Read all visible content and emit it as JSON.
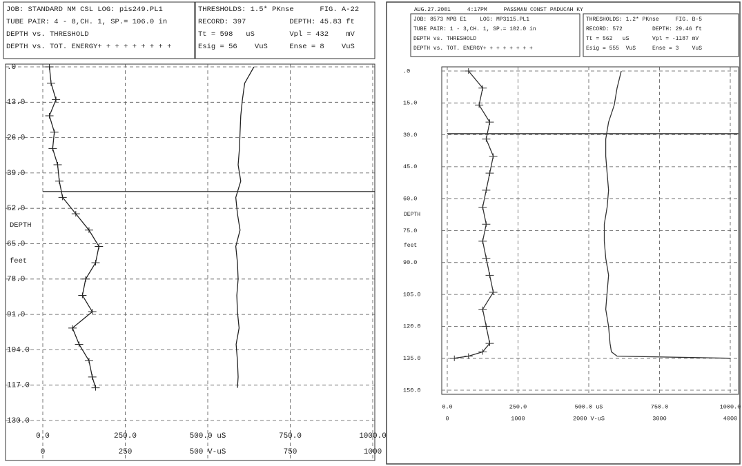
{
  "chart_data": [
    {
      "type": "line",
      "header_left": [
        "JOB: STANDARD NM CSL LOG: pis249.PL1",
        "TUBE PAIR: 4 - 8,CH. 1, SP.= 106.0 in",
        "DEPTH vs. THRESHOLD",
        "DEPTH vs. TOT. ENERGY+ + + + + + + + +"
      ],
      "header_right": [
        "THRESHOLDS: 1.5* PKnse      FIG. A-22",
        "RECORD: 397          DEPTH: 45.83 ft",
        "Tt = 598   uS        Vpl = 432    mV",
        "Esig = 56    VuS     Ense = 8    VuS"
      ],
      "ylabel": [
        "DEPTH",
        "feet"
      ],
      "x": [
        0,
        6,
        12,
        18,
        24,
        30,
        36,
        42,
        48,
        54,
        60,
        66,
        72,
        78,
        84,
        90,
        96,
        102,
        108,
        114,
        118
      ],
      "ylim": [
        0,
        130
      ],
      "yticks": [
        {
          "value": 0,
          "label": ".0"
        },
        {
          "value": 13,
          "label": "13.0"
        },
        {
          "value": 26,
          "label": "26.0"
        },
        {
          "value": 39,
          "label": "39.0"
        },
        {
          "value": 52,
          "label": "52.0"
        },
        {
          "value": 65,
          "label": "65.0"
        },
        {
          "value": 78,
          "label": "78.0"
        },
        {
          "value": 91,
          "label": "91.0"
        },
        {
          "value": 104,
          "label": "104.0"
        },
        {
          "value": 117,
          "label": "117.0"
        },
        {
          "value": 130,
          "label": "130.0"
        }
      ],
      "xlim": [
        0,
        1000
      ],
      "xticks": [
        {
          "value": 0,
          "label": "0.0"
        },
        {
          "value": 250,
          "label": "250.0"
        },
        {
          "value": 500,
          "label": "500.0 uS"
        },
        {
          "value": 750,
          "label": "750.0"
        },
        {
          "value": 1000,
          "label": "1000.0"
        }
      ],
      "x2lim": [
        0,
        1000
      ],
      "x2ticks": [
        0,
        250,
        {
          "value": 500,
          "label": "500 V-uS"
        },
        750,
        1000
      ],
      "marker_depth": 45.83,
      "series": [
        {
          "color": "#222222",
          "values": [
            640,
            612,
            605,
            600,
            598,
            596,
            592,
            600,
            585,
            590,
            598,
            585,
            590,
            592,
            588,
            590,
            595,
            586,
            590,
            592,
            590
          ]
        },
        {
          "color": "#222222",
          "axis": "x2",
          "values": [
            20,
            25,
            40,
            20,
            35,
            30,
            45,
            50,
            60,
            100,
            140,
            170,
            160,
            130,
            120,
            150,
            90,
            110,
            140,
            150,
            160
          ]
        }
      ]
    },
    {
      "type": "line",
      "top_note": "AUG.27.2001     4:17PM     PASSMAN CONST PADUCAH KY",
      "header_left": [
        "JOB: 8573 MPB E1    LOG: MP3115.PL1",
        "TUBE PAIR: 1 - 3,CH. 1, SP.= 102.0 in",
        "DEPTH vs. THRESHOLD",
        "DEPTH vs. TOT. ENERGY+ + + + + + + +"
      ],
      "header_right": [
        "THRESHOLDS: 1.2* PKnse     FIG. B-5",
        "RECORD: 572         DEPTH: 29.46 ft",
        "Tt = 562   uS       Vpl = -1187 mV",
        "Esig = 555  VuS     Ense = 3    VuS"
      ],
      "ylabel": [
        "DEPTH",
        "feet"
      ],
      "x": [
        0,
        8,
        16,
        24,
        32,
        40,
        48,
        56,
        64,
        72,
        80,
        88,
        96,
        104,
        112,
        120,
        128,
        132,
        134,
        135
      ],
      "ylim": [
        0,
        150
      ],
      "yticks": [
        {
          "value": 0,
          "label": ".0"
        },
        {
          "value": 15,
          "label": "15.0"
        },
        {
          "value": 30,
          "label": "30.0"
        },
        {
          "value": 45,
          "label": "45.0"
        },
        {
          "value": 60,
          "label": "60.0"
        },
        {
          "value": 75,
          "label": "75.0"
        },
        {
          "value": 90,
          "label": "90.0"
        },
        {
          "value": 105,
          "label": "105.0"
        },
        {
          "value": 120,
          "label": "120.0"
        },
        {
          "value": 135,
          "label": "135.0"
        },
        {
          "value": 150,
          "label": "150.0"
        }
      ],
      "xlim": [
        0,
        1000
      ],
      "xticks": [
        {
          "value": 0,
          "label": "0.0"
        },
        {
          "value": 250,
          "label": "250.0"
        },
        {
          "value": 500,
          "label": "500.0 uS"
        },
        {
          "value": 750,
          "label": "750.0"
        },
        {
          "value": 1000,
          "label": "1000.0"
        }
      ],
      "x2lim": [
        0,
        4000
      ],
      "x2ticks": [
        0,
        1000,
        {
          "value": 2000,
          "label": "2000 V-uS"
        },
        3000,
        4000
      ],
      "marker_depth": 29.46,
      "series": [
        {
          "color": "#333333",
          "values": [
            615,
            600,
            590,
            570,
            560,
            560,
            565,
            570,
            565,
            555,
            555,
            560,
            570,
            565,
            560,
            570,
            575,
            580,
            600,
            1000
          ]
        },
        {
          "color": "#333333",
          "axis": "x2",
          "values": [
            300,
            500,
            450,
            600,
            550,
            650,
            600,
            550,
            500,
            550,
            500,
            550,
            600,
            650,
            500,
            550,
            600,
            500,
            300,
            100
          ]
        }
      ]
    }
  ]
}
